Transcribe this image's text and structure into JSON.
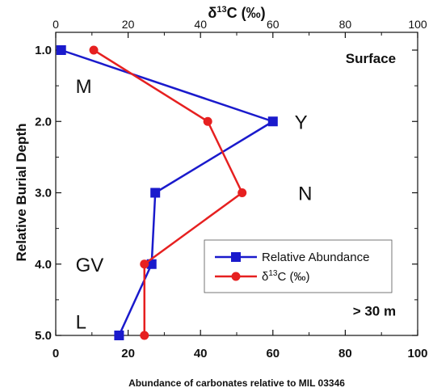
{
  "chart_data": {
    "type": "line",
    "title": "",
    "orientation": "profile",
    "xlabel": "Abundance of carbonates relative to MIL 03346",
    "ylabel": "Relative Burial Depth",
    "top_axis": {
      "label_prefix": "δ",
      "label_sup": "13",
      "label_suffix": "C (‰)",
      "ticks": [
        "0",
        "20",
        "40",
        "60",
        "80",
        "100"
      ],
      "range": [
        0,
        100
      ]
    },
    "xlim": [
      0,
      100
    ],
    "x_ticks": [
      "0",
      "20",
      "40",
      "60",
      "80",
      "100"
    ],
    "ylim": [
      1.0,
      5.0
    ],
    "y_ticks": [
      "1.0",
      "2.0",
      "3.0",
      "4.0",
      "5.0"
    ],
    "y_inverted": true,
    "series": [
      {
        "name": "Relative Abundance",
        "color": "#1a1acc",
        "marker": "square",
        "points": [
          {
            "x": 1.5,
            "y": 1.0
          },
          {
            "x": 60,
            "y": 2.0
          },
          {
            "x": 27.5,
            "y": 3.0
          },
          {
            "x": 26.5,
            "y": 4.0
          },
          {
            "x": 17.5,
            "y": 5.0
          }
        ]
      },
      {
        "name_prefix": "δ",
        "name_sup": "13",
        "name_suffix": "C (‰)",
        "color": "#e62020",
        "marker": "circle",
        "points": [
          {
            "x": 10.5,
            "y": 1.0
          },
          {
            "x": 42,
            "y": 2.0
          },
          {
            "x": 51.5,
            "y": 3.0
          },
          {
            "x": 24.5,
            "y": 4.0
          },
          {
            "x": 24.5,
            "y": 5.0
          }
        ]
      }
    ],
    "annotations": [
      {
        "text": "Surface",
        "style": "corner",
        "x": 94,
        "y": 1.18
      },
      {
        "text": "> 30 m",
        "style": "corner",
        "x": 94,
        "y": 4.72
      },
      {
        "text": "M",
        "style": "zone",
        "x": 5.5,
        "y": 1.5
      },
      {
        "text": "Y",
        "style": "zone",
        "x": 66,
        "y": 2.0
      },
      {
        "text": "N",
        "style": "zone",
        "x": 67,
        "y": 3.0
      },
      {
        "text": "GV",
        "style": "zone",
        "x": 5.5,
        "y": 4.0
      },
      {
        "text": "L",
        "style": "zone",
        "x": 5.5,
        "y": 4.8
      }
    ],
    "legend": {
      "placement": "lower-right"
    },
    "grid": false
  }
}
